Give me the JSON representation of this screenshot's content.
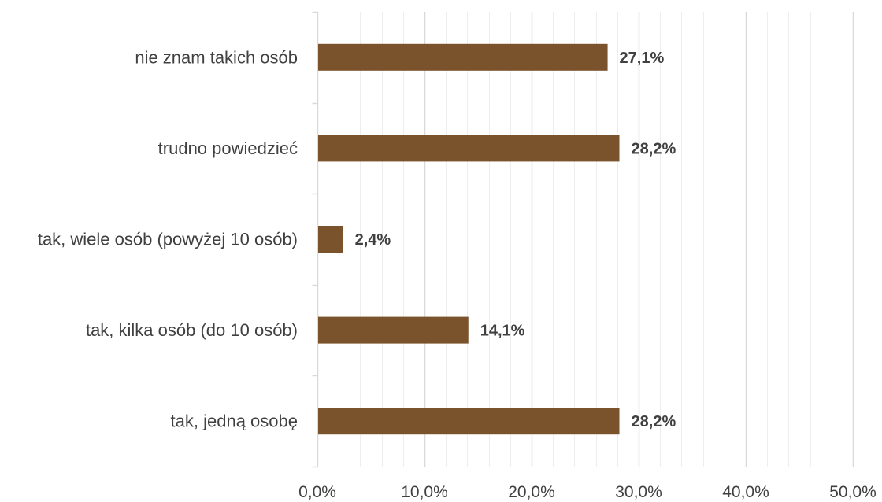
{
  "chart_data": {
    "type": "bar",
    "orientation": "horizontal",
    "title": "",
    "xlabel": "",
    "ylabel": "",
    "categories": [
      "nie znam takich osób",
      "trudno powiedzieć",
      "tak, wiele osób (powyżej 10 osób)",
      "tak, kilka osób (do 10 osób)",
      "tak, jedną osobę"
    ],
    "values": [
      27.1,
      28.2,
      2.4,
      14.1,
      28.2
    ],
    "data_labels": [
      "27,1%",
      "28,2%",
      "2,4%",
      "14,1%",
      "28,2%"
    ],
    "xlim": [
      0,
      50
    ],
    "x_ticks": [
      0,
      10,
      20,
      30,
      40,
      50
    ],
    "x_tick_labels": [
      "0,0%",
      "10,0%",
      "20,0%",
      "30,0%",
      "40,0%",
      "50,0%"
    ],
    "minor_gridline_step": 2,
    "grid": true,
    "legend": "none",
    "colors": {
      "bar": "#7a522b",
      "major_grid": "#d9d9d9",
      "minor_grid": "#eeeeee",
      "axis": "#d9d9d9",
      "text": "#404040"
    }
  }
}
